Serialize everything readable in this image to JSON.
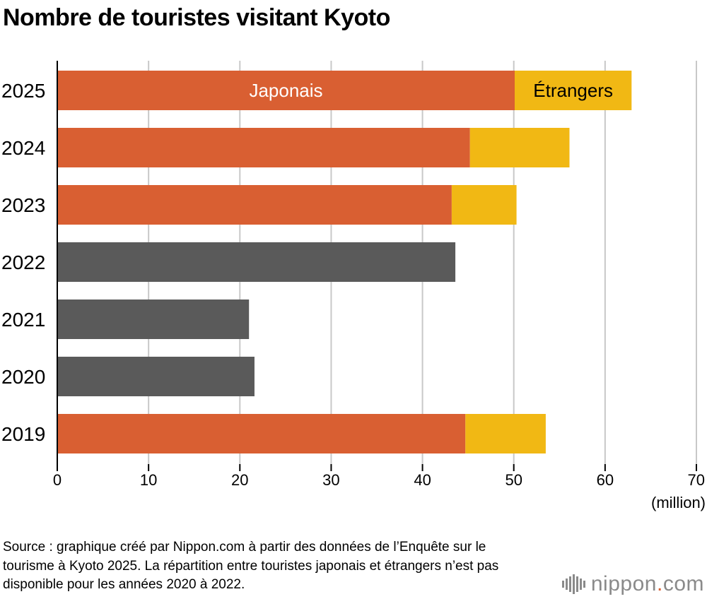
{
  "title": "Nombre de touristes visitant Kyoto",
  "source": "Source : graphique créé par Nippon.com à partir des données de l’Enquête sur le tourisme à Kyoto 2025. La répartition entre touristes japonais et étrangers n’est pas disponible pour les années 2020 à 2022.",
  "logo": {
    "name": "nippon",
    "dot": ".",
    "suffix": "com"
  },
  "colors": {
    "japanese": "#d95f32",
    "foreign": "#f1b814",
    "total": "#5a5a5a",
    "grid": "#c8c8c8",
    "axis": "#000000"
  },
  "chart_data": {
    "type": "bar",
    "orientation": "horizontal",
    "stacked": true,
    "categories": [
      "2025",
      "2024",
      "2023",
      "2022",
      "2021",
      "2020",
      "2019"
    ],
    "series": [
      {
        "name": "Japonais",
        "values": [
          50.1,
          45.2,
          43.2,
          null,
          null,
          null,
          44.7
        ]
      },
      {
        "name": "Étrangers",
        "values": [
          12.8,
          10.9,
          7.1,
          null,
          null,
          null,
          8.8
        ]
      },
      {
        "values": [
          null,
          null,
          null,
          43.6,
          21.0,
          21.6,
          null
        ]
      }
    ],
    "xlim": [
      0,
      70
    ],
    "xticks": [
      0,
      10,
      20,
      30,
      40,
      50,
      60,
      70
    ],
    "xunit": "(million)",
    "grid": true,
    "legend": "inside-first-bar"
  }
}
